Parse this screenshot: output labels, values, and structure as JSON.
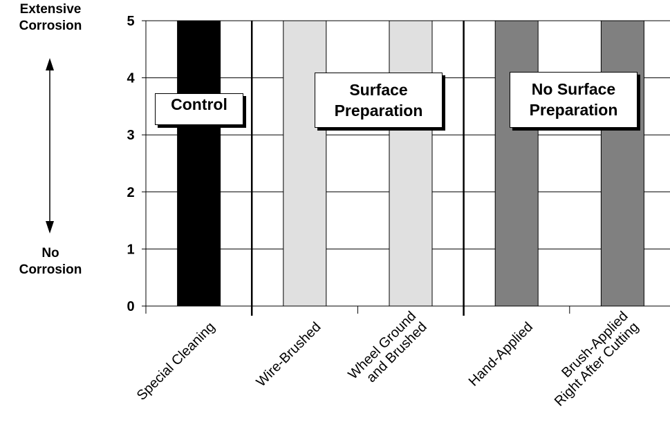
{
  "chart_data": {
    "type": "bar",
    "categories": [
      [
        "Special Cleaning"
      ],
      [
        "Wire-Brushed"
      ],
      [
        "Wheel Ground",
        "and Brushed"
      ],
      [
        "Hand-Applied"
      ],
      [
        "Brush-Applied",
        "Right After Cutting"
      ]
    ],
    "values": [
      5,
      5,
      5,
      5,
      5
    ],
    "bar_colors": [
      "#000000",
      "#e0e0e0",
      "#e0e0e0",
      "#808080",
      "#808080"
    ],
    "ylim": [
      0,
      5
    ],
    "yticks": [
      "0",
      "1",
      "2",
      "3",
      "4",
      "5"
    ],
    "grid": true,
    "ylabel_top": [
      "Extensive",
      "Corrosion"
    ],
    "ylabel_bottom": [
      "No",
      "Corrosion"
    ],
    "groups": [
      {
        "label": [
          "Control"
        ],
        "categories": [
          0
        ]
      },
      {
        "label": [
          "Surface",
          "Preparation"
        ],
        "categories": [
          1,
          2
        ]
      },
      {
        "label": [
          "No Surface",
          "Preparation"
        ],
        "categories": [
          3,
          4
        ]
      }
    ]
  }
}
